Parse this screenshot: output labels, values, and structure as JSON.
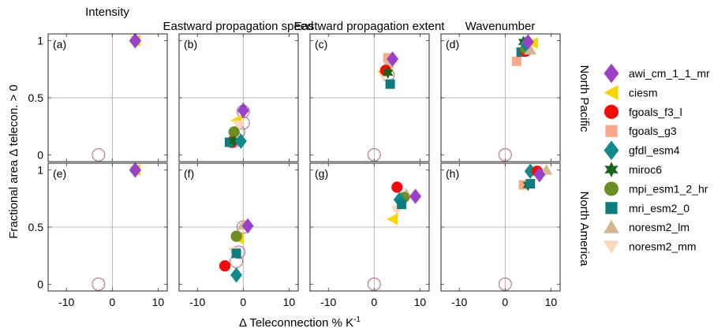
{
  "figure": {
    "ylabel": "Fractional area Δ telecon. > 0",
    "xlabel": "Δ Teleconnection % K",
    "xlabel_sup": "-1",
    "col_titles": [
      "Intensity",
      "Eastward propagation speed",
      "Eastward propagation extent",
      "Wavenumber"
    ],
    "row_titles": [
      "North Pacific",
      "North America"
    ],
    "xticks": [
      -10,
      0,
      10
    ],
    "yticks": [
      0,
      0.5,
      1
    ],
    "xlim": [
      -14,
      12
    ],
    "ylim": [
      -0.06,
      1.06
    ]
  },
  "legend": [
    {
      "name": "awi_cm_1_1_mr",
      "marker": "diamond",
      "color": "#9a41c8"
    },
    {
      "name": "ciesm",
      "marker": "triangle-left",
      "color": "#f7d500"
    },
    {
      "name": "fgoals_f3_l",
      "marker": "circle",
      "color": "#f50a0a"
    },
    {
      "name": "fgoals_g3",
      "marker": "square",
      "color": "#f9a98a"
    },
    {
      "name": "gfdl_esm4",
      "marker": "diamond",
      "color": "#138a8a"
    },
    {
      "name": "miroc6",
      "marker": "hexagram",
      "color": "#17641a"
    },
    {
      "name": "mpi_esm1_2_hr",
      "marker": "circle",
      "color": "#6b8f23"
    },
    {
      "name": "mri_esm2_0",
      "marker": "square",
      "color": "#0e7b7e"
    },
    {
      "name": "noresm2_lm",
      "marker": "triangle-up",
      "color": "#d3b791"
    },
    {
      "name": "noresm2_mm",
      "marker": "triangle-down",
      "color": "#fcd9bb"
    }
  ],
  "chart_data": [
    {
      "type": "scatter",
      "panel": "(a)",
      "row": "North Pacific",
      "column": "Intensity",
      "hollow_points": [
        {
          "x": -3,
          "y": 0
        }
      ],
      "points": [
        {
          "series": "noresm2_mm",
          "x": 5,
          "y": 1.0
        },
        {
          "series": "ciesm",
          "x": 5,
          "y": 1.0
        },
        {
          "series": "gfdl_esm4",
          "x": 5,
          "y": 1.0
        },
        {
          "series": "awi_cm_1_1_mr",
          "x": 5,
          "y": 1.0
        }
      ]
    },
    {
      "type": "scatter",
      "panel": "(b)",
      "row": "North Pacific",
      "column": "Eastward propagation speed",
      "hollow_points": [
        {
          "x": 0,
          "y": 0.28
        },
        {
          "x": -1,
          "y": 0.2
        },
        {
          "x": -2,
          "y": 0.12
        },
        {
          "x": -1.5,
          "y": 0.14
        },
        {
          "x": 0,
          "y": 0.38
        }
      ],
      "points": [
        {
          "series": "noresm2_lm",
          "x": 0,
          "y": 0.41
        },
        {
          "series": "ciesm",
          "x": -1.5,
          "y": 0.3
        },
        {
          "series": "noresm2_mm",
          "x": -1,
          "y": 0.26
        },
        {
          "series": "mpi_esm1_2_hr",
          "x": -2,
          "y": 0.2
        },
        {
          "series": "fgoals_f3_l",
          "x": -2.5,
          "y": 0.11
        },
        {
          "series": "mri_esm2_0",
          "x": -3,
          "y": 0.11
        },
        {
          "series": "miroc6",
          "x": -2,
          "y": 0.12
        },
        {
          "series": "gfdl_esm4",
          "x": -0.5,
          "y": 0.12
        },
        {
          "series": "awi_cm_1_1_mr",
          "x": 0,
          "y": 0.39
        }
      ]
    },
    {
      "type": "scatter",
      "panel": "(c)",
      "row": "North Pacific",
      "column": "Eastward propagation extent",
      "hollow_points": [
        {
          "x": 0,
          "y": 0
        },
        {
          "x": 3,
          "y": 0.7
        }
      ],
      "points": [
        {
          "series": "noresm2_lm",
          "x": 3,
          "y": 0.8
        },
        {
          "series": "fgoals_g3",
          "x": 3,
          "y": 0.85
        },
        {
          "series": "noresm2_mm",
          "x": 2,
          "y": 0.7
        },
        {
          "series": "ciesm",
          "x": 2,
          "y": 0.73
        },
        {
          "series": "fgoals_f3_l",
          "x": 2.5,
          "y": 0.74
        },
        {
          "series": "miroc6",
          "x": 3,
          "y": 0.72
        },
        {
          "series": "mri_esm2_0",
          "x": 3.5,
          "y": 0.62
        },
        {
          "series": "awi_cm_1_1_mr",
          "x": 4,
          "y": 0.84
        }
      ]
    },
    {
      "type": "scatter",
      "panel": "(d)",
      "row": "North Pacific",
      "column": "Wavenumber",
      "hollow_points": [
        {
          "x": 0,
          "y": 0
        }
      ],
      "points": [
        {
          "series": "fgoals_g3",
          "x": 2.5,
          "y": 0.82
        },
        {
          "series": "mri_esm2_0",
          "x": 3.5,
          "y": 0.9
        },
        {
          "series": "fgoals_f3_l",
          "x": 4.5,
          "y": 0.91
        },
        {
          "series": "mpi_esm1_2_hr",
          "x": 4.5,
          "y": 0.93
        },
        {
          "series": "noresm2_lm",
          "x": 5.5,
          "y": 0.92
        },
        {
          "series": "miroc6",
          "x": 4,
          "y": 0.99
        },
        {
          "series": "ciesm",
          "x": 6,
          "y": 0.98
        },
        {
          "series": "gfdl_esm4",
          "x": 4.5,
          "y": 0.97
        },
        {
          "series": "awi_cm_1_1_mr",
          "x": 5,
          "y": 0.99
        }
      ]
    },
    {
      "type": "scatter",
      "panel": "(e)",
      "row": "North America",
      "column": "Intensity",
      "hollow_points": [
        {
          "x": -3,
          "y": 0
        }
      ],
      "points": [
        {
          "series": "noresm2_mm",
          "x": 5,
          "y": 1.0
        },
        {
          "series": "ciesm",
          "x": 5,
          "y": 1.0
        },
        {
          "series": "gfdl_esm4",
          "x": 5,
          "y": 1.0
        },
        {
          "series": "awi_cm_1_1_mr",
          "x": 5,
          "y": 1.0
        }
      ]
    },
    {
      "type": "scatter",
      "panel": "(f)",
      "row": "North America",
      "column": "Eastward propagation speed",
      "hollow_points": [
        {
          "x": -1.5,
          "y": 0.2
        },
        {
          "x": -1,
          "y": 0.28
        },
        {
          "x": 0,
          "y": 0.5
        }
      ],
      "points": [
        {
          "series": "noresm2_lm",
          "x": 0,
          "y": 0.52
        },
        {
          "series": "noresm2_mm",
          "x": -2,
          "y": 0.28
        },
        {
          "series": "ciesm",
          "x": -1,
          "y": 0.4
        },
        {
          "series": "mpi_esm1_2_hr",
          "x": -1.5,
          "y": 0.42
        },
        {
          "series": "mri_esm2_0",
          "x": -1.5,
          "y": 0.27
        },
        {
          "series": "fgoals_f3_l",
          "x": -4,
          "y": 0.16
        },
        {
          "series": "gfdl_esm4",
          "x": -1.5,
          "y": 0.08
        },
        {
          "series": "awi_cm_1_1_mr",
          "x": 1,
          "y": 0.51
        }
      ]
    },
    {
      "type": "scatter",
      "panel": "(g)",
      "row": "North America",
      "column": "Eastward propagation extent",
      "hollow_points": [
        {
          "x": 0,
          "y": 0
        }
      ],
      "points": [
        {
          "series": "noresm2_mm",
          "x": 5,
          "y": 0.65
        },
        {
          "series": "ciesm",
          "x": 4,
          "y": 0.57
        },
        {
          "series": "fgoals_f3_l",
          "x": 5,
          "y": 0.85
        },
        {
          "series": "noresm2_lm",
          "x": 7,
          "y": 0.79
        },
        {
          "series": "mpi_esm1_2_hr",
          "x": 6.5,
          "y": 0.76
        },
        {
          "series": "gfdl_esm4",
          "x": 5.5,
          "y": 0.74
        },
        {
          "series": "mri_esm2_0",
          "x": 6,
          "y": 0.7
        },
        {
          "series": "awi_cm_1_1_mr",
          "x": 9,
          "y": 0.77
        }
      ]
    },
    {
      "type": "scatter",
      "panel": "(h)",
      "row": "North America",
      "column": "Wavenumber",
      "hollow_points": [
        {
          "x": 0,
          "y": 0
        }
      ],
      "points": [
        {
          "series": "fgoals_g3",
          "x": 4,
          "y": 0.87
        },
        {
          "series": "miroc6",
          "x": 5,
          "y": 0.87
        },
        {
          "series": "mri_esm2_0",
          "x": 5.5,
          "y": 0.88
        },
        {
          "series": "gfdl_esm4",
          "x": 5.5,
          "y": 0.99
        },
        {
          "series": "noresm2_lm",
          "x": 9,
          "y": 1.0
        },
        {
          "series": "fgoals_f3_l",
          "x": 7,
          "y": 0.99
        },
        {
          "series": "awi_cm_1_1_mr",
          "x": 7.5,
          "y": 0.96
        }
      ]
    }
  ]
}
